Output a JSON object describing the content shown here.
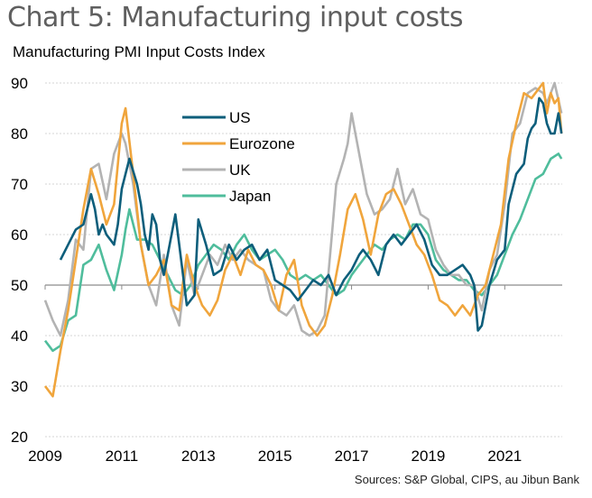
{
  "chart_data": {
    "type": "line",
    "title": "Chart 5: Manufacturing input costs",
    "subtitle": "Manufacturing PMI Input Costs Index",
    "xlabel": "",
    "ylabel": "",
    "source": "Sources: S&P Global, CIPS, au Jibun Bank",
    "ylim": [
      20,
      90
    ],
    "xlim": [
      2009,
      2022.5
    ],
    "yticks": [
      "90",
      "80",
      "70",
      "60",
      "50",
      "40",
      "30",
      "20"
    ],
    "ytick_values": [
      90,
      80,
      70,
      60,
      50,
      40,
      30,
      20
    ],
    "xticks": [
      "2009",
      "2011",
      "2013",
      "2015",
      "2017",
      "2019",
      "2021"
    ],
    "xtick_values": [
      2009,
      2011,
      2013,
      2015,
      2017,
      2019,
      2021
    ],
    "reference_line": 50,
    "grid": "horizontal-dotted",
    "legend": {
      "placement": "top-center",
      "entries": [
        "US",
        "Eurozone",
        "UK",
        "Japan"
      ]
    },
    "series": [
      {
        "name": "US",
        "color": "#0d5e7b",
        "x": [
          2009.4,
          2009.6,
          2009.8,
          2010.0,
          2010.2,
          2010.3,
          2010.4,
          2010.5,
          2010.6,
          2010.7,
          2010.8,
          2010.9,
          2011.0,
          2011.1,
          2011.2,
          2011.4,
          2011.5,
          2011.6,
          2011.7,
          2011.8,
          2011.9,
          2012.0,
          2012.1,
          2012.3,
          2012.4,
          2012.5,
          2012.7,
          2012.9,
          2013.0,
          2013.2,
          2013.4,
          2013.6,
          2013.8,
          2014.0,
          2014.2,
          2014.4,
          2014.6,
          2014.8,
          2015.0,
          2015.2,
          2015.4,
          2015.6,
          2015.8,
          2016.0,
          2016.2,
          2016.4,
          2016.6,
          2016.8,
          2017.0,
          2017.2,
          2017.3,
          2017.5,
          2017.7,
          2017.9,
          2018.1,
          2018.3,
          2018.5,
          2018.7,
          2018.9,
          2019.1,
          2019.3,
          2019.5,
          2019.7,
          2019.9,
          2020.0,
          2020.1,
          2020.2,
          2020.3,
          2020.4,
          2020.6,
          2020.8,
          2021.0,
          2021.1,
          2021.3,
          2021.5,
          2021.6,
          2021.7,
          2021.8,
          2021.9,
          2022.0,
          2022.1,
          2022.2,
          2022.3,
          2022.4,
          2022.48
        ],
        "values": [
          55,
          58,
          61,
          62,
          68,
          65,
          60,
          62,
          60,
          59,
          58,
          62,
          69,
          72,
          75,
          70,
          66,
          60,
          57,
          64,
          62,
          55,
          52,
          60,
          64,
          58,
          46,
          48,
          63,
          58,
          52,
          53,
          58,
          55,
          57,
          58,
          55,
          57,
          51,
          50,
          49,
          47,
          49,
          51,
          50,
          52,
          48,
          51,
          53,
          56,
          57,
          55,
          52,
          58,
          60,
          58,
          60,
          62,
          59,
          54,
          52,
          52,
          53,
          54,
          53,
          52,
          50,
          41,
          42,
          50,
          55,
          57,
          66,
          72,
          74,
          79,
          81,
          82,
          87,
          86,
          82,
          80,
          80,
          84,
          80
        ]
      },
      {
        "name": "Eurozone",
        "color": "#f0a53c",
        "x": [
          2009.0,
          2009.2,
          2009.4,
          2009.6,
          2009.8,
          2010.0,
          2010.2,
          2010.4,
          2010.6,
          2010.8,
          2011.0,
          2011.1,
          2011.3,
          2011.5,
          2011.7,
          2011.9,
          2012.1,
          2012.3,
          2012.5,
          2012.7,
          2012.9,
          2013.1,
          2013.3,
          2013.5,
          2013.7,
          2013.9,
          2014.1,
          2014.3,
          2014.5,
          2014.7,
          2014.9,
          2015.1,
          2015.3,
          2015.5,
          2015.7,
          2015.9,
          2016.1,
          2016.3,
          2016.5,
          2016.7,
          2016.9,
          2017.1,
          2017.3,
          2017.5,
          2017.7,
          2017.9,
          2018.1,
          2018.3,
          2018.5,
          2018.7,
          2018.9,
          2019.1,
          2019.3,
          2019.5,
          2019.7,
          2019.9,
          2020.1,
          2020.3,
          2020.5,
          2020.7,
          2020.9,
          2021.1,
          2021.3,
          2021.5,
          2021.7,
          2021.9,
          2022.0,
          2022.1,
          2022.2,
          2022.3,
          2022.4,
          2022.48
        ],
        "values": [
          30,
          28,
          37,
          45,
          55,
          65,
          73,
          68,
          62,
          66,
          82,
          85,
          72,
          58,
          50,
          52,
          55,
          46,
          45,
          56,
          50,
          46,
          44,
          47,
          53,
          56,
          52,
          57,
          54,
          53,
          50,
          45,
          52,
          55,
          46,
          42,
          40,
          42,
          48,
          56,
          65,
          68,
          63,
          56,
          64,
          68,
          69,
          66,
          62,
          58,
          56,
          52,
          47,
          46,
          44,
          46,
          44,
          48,
          50,
          56,
          62,
          75,
          82,
          88,
          87,
          89,
          90,
          84,
          88,
          86,
          87,
          80
        ]
      },
      {
        "name": "UK",
        "color": "#b3b3b3",
        "x": [
          2009.0,
          2009.2,
          2009.4,
          2009.6,
          2009.8,
          2010.0,
          2010.2,
          2010.4,
          2010.6,
          2010.8,
          2011.0,
          2011.1,
          2011.3,
          2011.5,
          2011.7,
          2011.9,
          2012.1,
          2012.3,
          2012.5,
          2012.7,
          2012.9,
          2013.1,
          2013.3,
          2013.5,
          2013.7,
          2013.9,
          2014.1,
          2014.3,
          2014.5,
          2014.7,
          2014.9,
          2015.1,
          2015.3,
          2015.5,
          2015.7,
          2015.9,
          2016.1,
          2016.3,
          2016.5,
          2016.6,
          2016.8,
          2016.9,
          2017.0,
          2017.2,
          2017.4,
          2017.6,
          2017.8,
          2018.0,
          2018.2,
          2018.4,
          2018.6,
          2018.8,
          2019.0,
          2019.2,
          2019.4,
          2019.6,
          2019.8,
          2020.0,
          2020.2,
          2020.4,
          2020.6,
          2020.8,
          2021.0,
          2021.2,
          2021.4,
          2021.6,
          2021.8,
          2022.0,
          2022.1,
          2022.2,
          2022.3,
          2022.48
        ],
        "values": [
          47,
          43,
          40,
          47,
          59,
          57,
          73,
          74,
          67,
          76,
          80,
          78,
          70,
          58,
          50,
          46,
          56,
          46,
          42,
          55,
          48,
          52,
          56,
          54,
          58,
          55,
          57,
          55,
          54,
          53,
          47,
          45,
          44,
          46,
          41,
          40,
          41,
          44,
          61,
          70,
          75,
          78,
          84,
          76,
          68,
          64,
          65,
          67,
          73,
          66,
          69,
          64,
          63,
          57,
          54,
          52,
          52,
          50,
          50,
          45,
          53,
          56,
          66,
          80,
          82,
          88,
          89,
          88,
          86,
          88,
          90,
          84
        ]
      },
      {
        "name": "Japan",
        "color": "#4fbd9c",
        "x": [
          2009.0,
          2009.2,
          2009.4,
          2009.6,
          2009.8,
          2010.0,
          2010.2,
          2010.4,
          2010.6,
          2010.8,
          2011.0,
          2011.1,
          2011.2,
          2011.4,
          2011.6,
          2011.8,
          2012.0,
          2012.2,
          2012.4,
          2012.6,
          2012.8,
          2013.0,
          2013.2,
          2013.4,
          2013.6,
          2013.8,
          2014.0,
          2014.2,
          2014.4,
          2014.6,
          2014.8,
          2015.0,
          2015.2,
          2015.4,
          2015.6,
          2015.8,
          2016.0,
          2016.2,
          2016.4,
          2016.6,
          2016.8,
          2017.0,
          2017.2,
          2017.4,
          2017.6,
          2017.8,
          2018.0,
          2018.2,
          2018.4,
          2018.6,
          2018.8,
          2019.0,
          2019.2,
          2019.4,
          2019.6,
          2019.8,
          2020.0,
          2020.2,
          2020.4,
          2020.6,
          2020.8,
          2021.0,
          2021.2,
          2021.4,
          2021.6,
          2021.8,
          2022.0,
          2022.2,
          2022.4,
          2022.48
        ],
        "values": [
          39,
          37,
          38,
          43,
          44,
          54,
          55,
          58,
          53,
          49,
          56,
          61,
          65,
          59,
          59,
          58,
          55,
          52,
          49,
          48,
          50,
          54,
          56,
          58,
          57,
          55,
          58,
          60,
          57,
          55,
          56,
          57,
          55,
          52,
          51,
          52,
          51,
          52,
          50,
          48,
          49,
          52,
          54,
          56,
          58,
          57,
          59,
          60,
          59,
          62,
          62,
          60,
          55,
          53,
          52,
          51,
          51,
          49,
          48,
          50,
          52,
          56,
          60,
          63,
          67,
          71,
          72,
          75,
          76,
          75
        ]
      }
    ]
  }
}
